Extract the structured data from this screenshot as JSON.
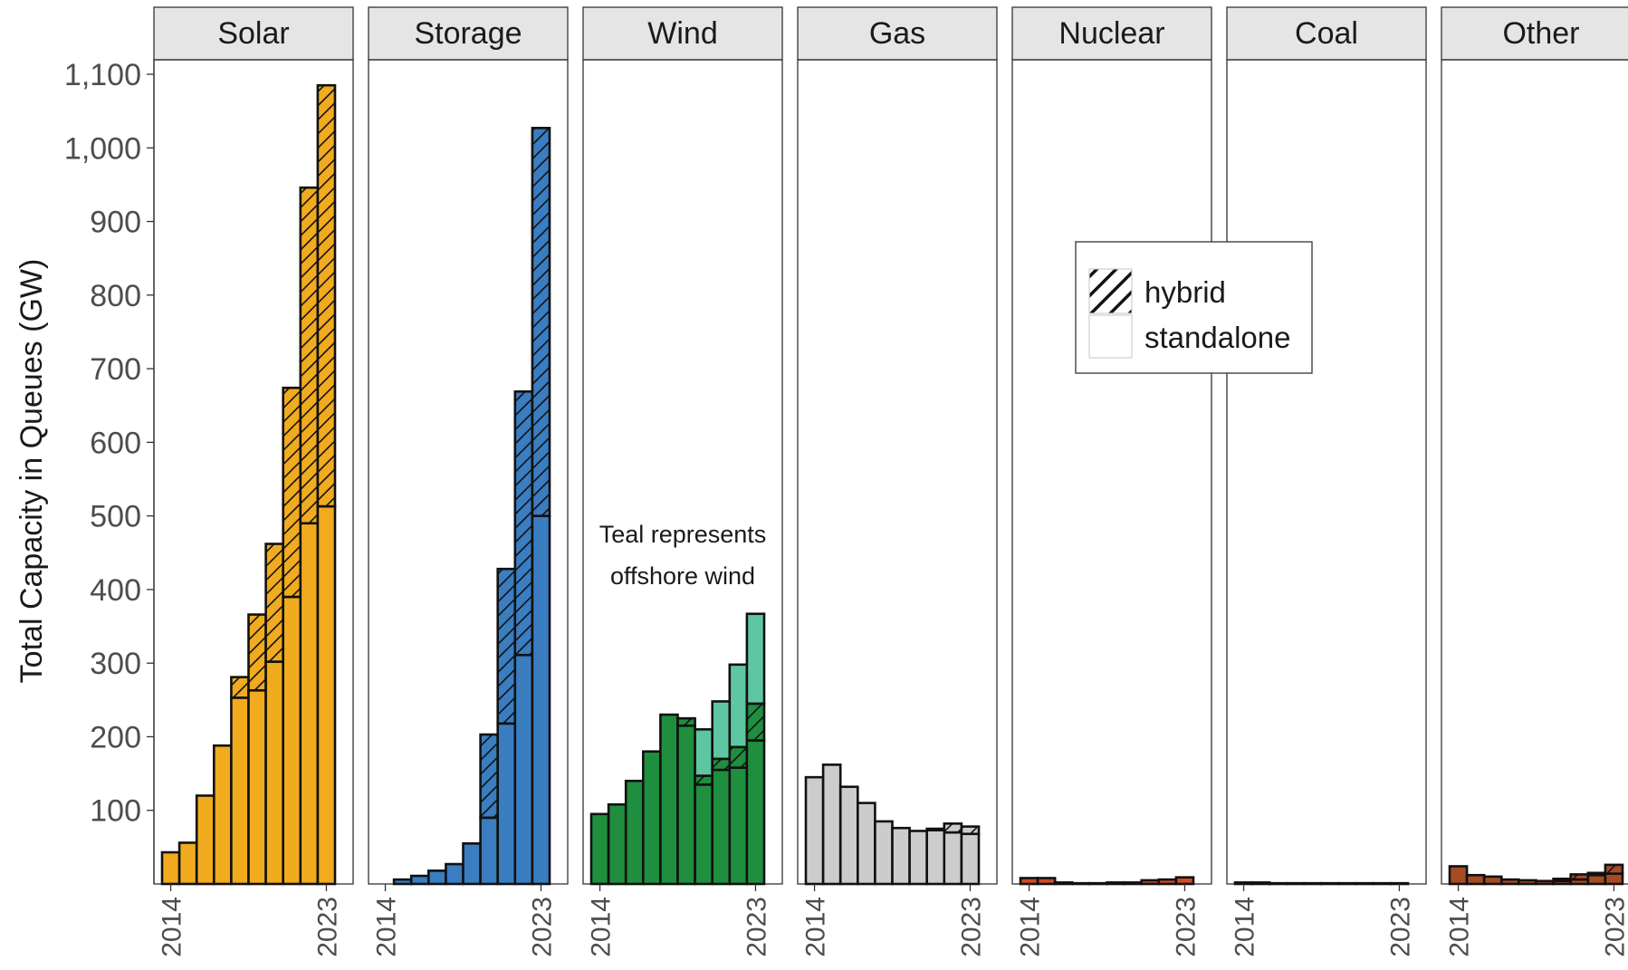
{
  "chart_data": {
    "type": "bar",
    "subtype": "faceted stacked bar",
    "ylabel": "Total Capacity in Queues (GW)",
    "xlabel": "",
    "ylim": [
      0,
      1100
    ],
    "yticks": [
      "100",
      "200",
      "300",
      "400",
      "500",
      "600",
      "700",
      "800",
      "900",
      "1,000",
      "1,100"
    ],
    "ytick_values": [
      100,
      200,
      300,
      400,
      500,
      600,
      700,
      800,
      900,
      1000,
      1100
    ],
    "years": [
      2014,
      2015,
      2016,
      2017,
      2018,
      2019,
      2020,
      2021,
      2022,
      2023
    ],
    "xticks": [
      "2014",
      "2023"
    ],
    "grid": false,
    "legend_placement": "inside-right",
    "legend": {
      "hybrid_label": "hybrid",
      "standalone_label": "standalone"
    },
    "annotation": {
      "panel": "Wind",
      "line1": "Teal represents",
      "line2": "offshore wind"
    },
    "panels": [
      {
        "name": "Solar",
        "color": "#f0ab1e",
        "standalone": [
          43,
          56,
          120,
          188,
          253,
          263,
          302,
          390,
          490,
          513
        ],
        "hybrid": [
          0,
          0,
          0,
          0,
          28,
          103,
          160,
          284,
          456,
          572
        ]
      },
      {
        "name": "Storage",
        "color": "#3a7dc0",
        "standalone": [
          0,
          6,
          11,
          18,
          27,
          55,
          90,
          218,
          311,
          500
        ],
        "hybrid": [
          0,
          0,
          0,
          0,
          0,
          0,
          113,
          210,
          358,
          527
        ]
      },
      {
        "name": "Wind",
        "color": "#1f8f3f",
        "offshore_color": "#5fc6a2",
        "standalone": [
          95,
          108,
          140,
          180,
          230,
          215,
          135,
          155,
          158,
          195
        ],
        "hybrid": [
          0,
          0,
          0,
          0,
          0,
          10,
          12,
          15,
          28,
          50
        ],
        "offshore": [
          0,
          0,
          0,
          0,
          0,
          0,
          63,
          78,
          112,
          122
        ]
      },
      {
        "name": "Gas",
        "color": "#cccccc",
        "standalone": [
          145,
          162,
          132,
          110,
          85,
          76,
          72,
          73,
          70,
          68
        ],
        "hybrid": [
          0,
          0,
          0,
          0,
          0,
          0,
          0,
          2,
          12,
          10
        ]
      },
      {
        "name": "Nuclear",
        "color": "#cf4a26",
        "standalone": [
          8,
          8,
          2,
          1,
          1,
          2,
          2,
          5,
          6,
          9
        ],
        "hybrid": [
          0,
          0,
          0,
          0,
          0,
          0,
          0,
          0,
          0,
          0
        ]
      },
      {
        "name": "Coal",
        "color": "#c8c8c8",
        "standalone": [
          2,
          2,
          1,
          1,
          1,
          1,
          1,
          1,
          1,
          1
        ],
        "hybrid": [
          0,
          0,
          0,
          0,
          0,
          0,
          0,
          0,
          0,
          0
        ]
      },
      {
        "name": "Other",
        "color": "#a64b24",
        "standalone": [
          24,
          12,
          10,
          6,
          5,
          4,
          4,
          6,
          12,
          14
        ],
        "hybrid": [
          0,
          0,
          0,
          0,
          0,
          0,
          3,
          7,
          3,
          12
        ]
      }
    ]
  }
}
